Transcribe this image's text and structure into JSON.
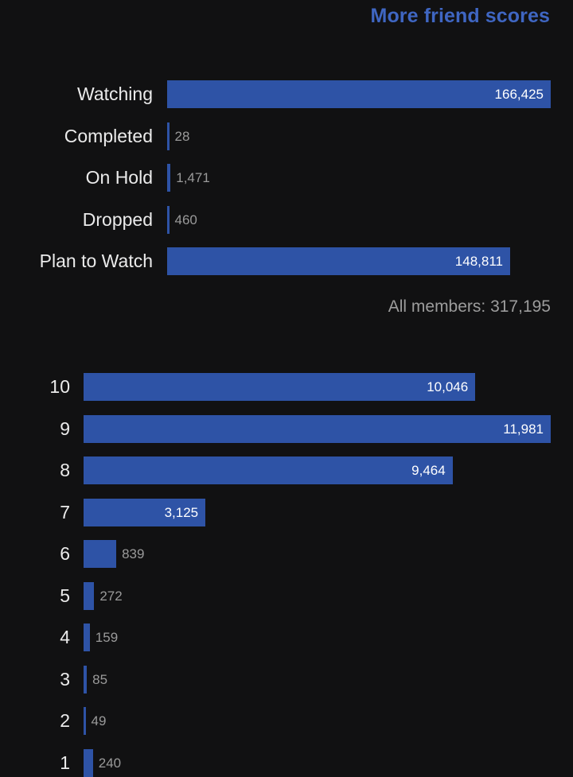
{
  "header": {
    "more_link_label": "More friend scores"
  },
  "colors": {
    "accent": "#3f66c2",
    "bar": "#2e53a6",
    "background": "#111112"
  },
  "status": {
    "items": [
      {
        "label": "Watching",
        "value": 166425,
        "display": "166,425"
      },
      {
        "label": "Completed",
        "value": 28,
        "display": "28"
      },
      {
        "label": "On Hold",
        "value": 1471,
        "display": "1,471"
      },
      {
        "label": "Dropped",
        "value": 460,
        "display": "460"
      },
      {
        "label": "Plan to Watch",
        "value": 148811,
        "display": "148,811"
      }
    ],
    "total_label": "All members: 317,195"
  },
  "scores": {
    "items": [
      {
        "label": "10",
        "value": 10046,
        "display": "10,046"
      },
      {
        "label": "9",
        "value": 11981,
        "display": "11,981"
      },
      {
        "label": "8",
        "value": 9464,
        "display": "9,464"
      },
      {
        "label": "7",
        "value": 3125,
        "display": "3,125"
      },
      {
        "label": "6",
        "value": 839,
        "display": "839"
      },
      {
        "label": "5",
        "value": 272,
        "display": "272"
      },
      {
        "label": "4",
        "value": 159,
        "display": "159"
      },
      {
        "label": "3",
        "value": 85,
        "display": "85"
      },
      {
        "label": "2",
        "value": 49,
        "display": "49"
      },
      {
        "label": "1",
        "value": 240,
        "display": "240"
      }
    ]
  }
}
